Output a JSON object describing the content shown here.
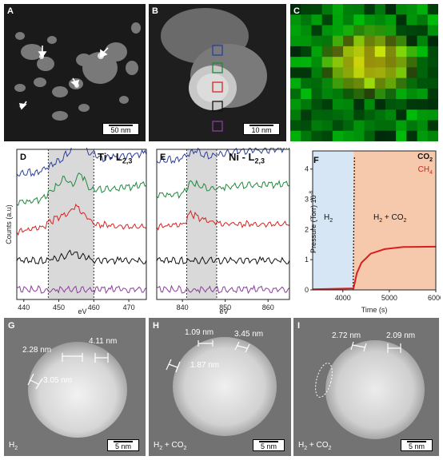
{
  "panels": {
    "A": {
      "label": "A",
      "scale": "50 nm"
    },
    "B": {
      "label": "B",
      "scale": "10 nm"
    },
    "C": {
      "label": "C"
    },
    "D": {
      "label": "D",
      "edge": "Ti - L",
      "edge_sub": "2,3",
      "ylabel": "Counts (a.u)",
      "xlabel": "eV",
      "ticks": [
        "440",
        "450",
        "460",
        "470"
      ]
    },
    "E": {
      "label": "E",
      "edge": "Ni - L",
      "edge_sub": "2,3",
      "xlabel": "eV",
      "ticks": [
        "840",
        "850",
        "860"
      ]
    },
    "F": {
      "label": "F"
    },
    "G": {
      "label": "G",
      "scale": "5 nm",
      "atmos": "H",
      "atmos_sub": "2",
      "atmos_rest": "",
      "m1": "2.28 nm",
      "m2": "4.11 nm",
      "m3": "3.05 nm"
    },
    "H": {
      "label": "H",
      "scale": "5 nm",
      "atmos": "H",
      "atmos_sub": "2",
      "atmos_rest": " + CO",
      "atmos_sub2": "2",
      "m1": "1.09 nm",
      "m2": "3.45 nm",
      "m3": "1.87 nm"
    },
    "I": {
      "label": "I",
      "scale": "5 nm",
      "atmos": "H",
      "atmos_sub": "2",
      "atmos_rest": " + CO",
      "atmos_sub2": "2",
      "m1": "2.72 nm",
      "m2": "2.09 nm"
    }
  },
  "colors": {
    "blue": "#2b3f9e",
    "green": "#1e8a3c",
    "red": "#d62424",
    "black": "#111111",
    "purple": "#8a3d9b",
    "h2_region": "#d6e6f5",
    "mix_region": "#f6c9ad",
    "ch4": "#d81e1e"
  },
  "chart_data": [
    {
      "type": "line",
      "panel": "D",
      "x_range": [
        438,
        475
      ],
      "shaded": [
        447,
        460
      ],
      "ticks": [
        440,
        450,
        460,
        470
      ],
      "series": [
        {
          "color": "blue",
          "values": [
            [
              438,
              0.3
            ],
            [
              445,
              0.4
            ],
            [
              450,
              0.8
            ],
            [
              454,
              1.3
            ],
            [
              456,
              1.8
            ],
            [
              458,
              1.2
            ],
            [
              462,
              0.9
            ],
            [
              470,
              1.0
            ],
            [
              475,
              1.1
            ]
          ]
        },
        {
          "color": "green",
          "values": [
            [
              438,
              0.3
            ],
            [
              445,
              0.4
            ],
            [
              449,
              0.9
            ],
            [
              452,
              1.3
            ],
            [
              454,
              1.0
            ],
            [
              456,
              1.5
            ],
            [
              459,
              0.8
            ],
            [
              470,
              0.9
            ],
            [
              475,
              1.0
            ]
          ]
        },
        {
          "color": "red",
          "values": [
            [
              438,
              0.3
            ],
            [
              445,
              0.4
            ],
            [
              449,
              0.8
            ],
            [
              452,
              0.9
            ],
            [
              455,
              1.3
            ],
            [
              457,
              1.0
            ],
            [
              460,
              0.6
            ],
            [
              470,
              0.5
            ],
            [
              475,
              0.5
            ]
          ]
        },
        {
          "color": "black",
          "values": [
            [
              438,
              0.3
            ],
            [
              445,
              0.3
            ],
            [
              450,
              0.4
            ],
            [
              454,
              0.6
            ],
            [
              456,
              0.5
            ],
            [
              460,
              0.3
            ],
            [
              475,
              0.3
            ]
          ]
        },
        {
          "color": "purple",
          "values": [
            [
              438,
              0.3
            ],
            [
              450,
              0.3
            ],
            [
              460,
              0.3
            ],
            [
              475,
              0.3
            ]
          ]
        }
      ]
    },
    {
      "type": "line",
      "panel": "E",
      "x_range": [
        834,
        865
      ],
      "shaded": [
        841,
        848
      ],
      "ticks": [
        840,
        850,
        860
      ],
      "series": [
        {
          "color": "blue",
          "values": [
            [
              834,
              0.8
            ],
            [
              840,
              0.9
            ],
            [
              843,
              1.2
            ],
            [
              846,
              1.0
            ],
            [
              850,
              1.1
            ],
            [
              855,
              1.2
            ],
            [
              860,
              1.2
            ],
            [
              865,
              1.3
            ]
          ]
        },
        {
          "color": "green",
          "values": [
            [
              834,
              0.6
            ],
            [
              840,
              0.6
            ],
            [
              842,
              1.1
            ],
            [
              845,
              0.9
            ],
            [
              850,
              0.9
            ],
            [
              855,
              1.0
            ],
            [
              860,
              1.0
            ],
            [
              865,
              1.0
            ]
          ]
        },
        {
          "color": "red",
          "values": [
            [
              834,
              0.5
            ],
            [
              840,
              0.5
            ],
            [
              842,
              1.0
            ],
            [
              845,
              0.7
            ],
            [
              850,
              0.6
            ],
            [
              855,
              0.6
            ],
            [
              860,
              0.6
            ],
            [
              865,
              0.6
            ]
          ]
        },
        {
          "color": "black",
          "values": [
            [
              834,
              0.3
            ],
            [
              845,
              0.3
            ],
            [
              855,
              0.3
            ],
            [
              865,
              0.3
            ]
          ]
        },
        {
          "color": "purple",
          "values": [
            [
              834,
              0.3
            ],
            [
              850,
              0.3
            ],
            [
              865,
              0.3
            ]
          ]
        }
      ]
    },
    {
      "type": "line",
      "panel": "F",
      "xlabel": "Time (s)",
      "ylabel": "Pressure (Torr) 10",
      "ylabel_sup": "-8",
      "x_range": [
        3350,
        6000
      ],
      "y_range": [
        0,
        4.6
      ],
      "x_ticks": [
        "4000",
        "5000",
        "6000"
      ],
      "y_ticks": [
        "0",
        "1",
        "2",
        "3",
        "4"
      ],
      "switch_time": 4230,
      "regions": [
        {
          "label": "H",
          "sub": "2"
        },
        {
          "label": "H",
          "sub": "2",
          "rest": " + CO",
          "sub2": "2"
        }
      ],
      "legend": [
        {
          "label": "CO",
          "sub": "2",
          "color": "black"
        },
        {
          "label": "CH",
          "sub": "4",
          "color": "ch4"
        }
      ],
      "series": [
        {
          "name": "CO2",
          "color": "black",
          "values": [
            [
              4220,
              0.0
            ],
            [
              4235,
              2.0
            ],
            [
              4250,
              4.4
            ]
          ]
        },
        {
          "name": "CH4",
          "color": "ch4",
          "values": [
            [
              3350,
              0.02
            ],
            [
              4230,
              0.05
            ],
            [
              4300,
              0.55
            ],
            [
              4400,
              0.9
            ],
            [
              4600,
              1.2
            ],
            [
              4900,
              1.35
            ],
            [
              5300,
              1.42
            ],
            [
              6000,
              1.43
            ]
          ]
        }
      ]
    }
  ]
}
